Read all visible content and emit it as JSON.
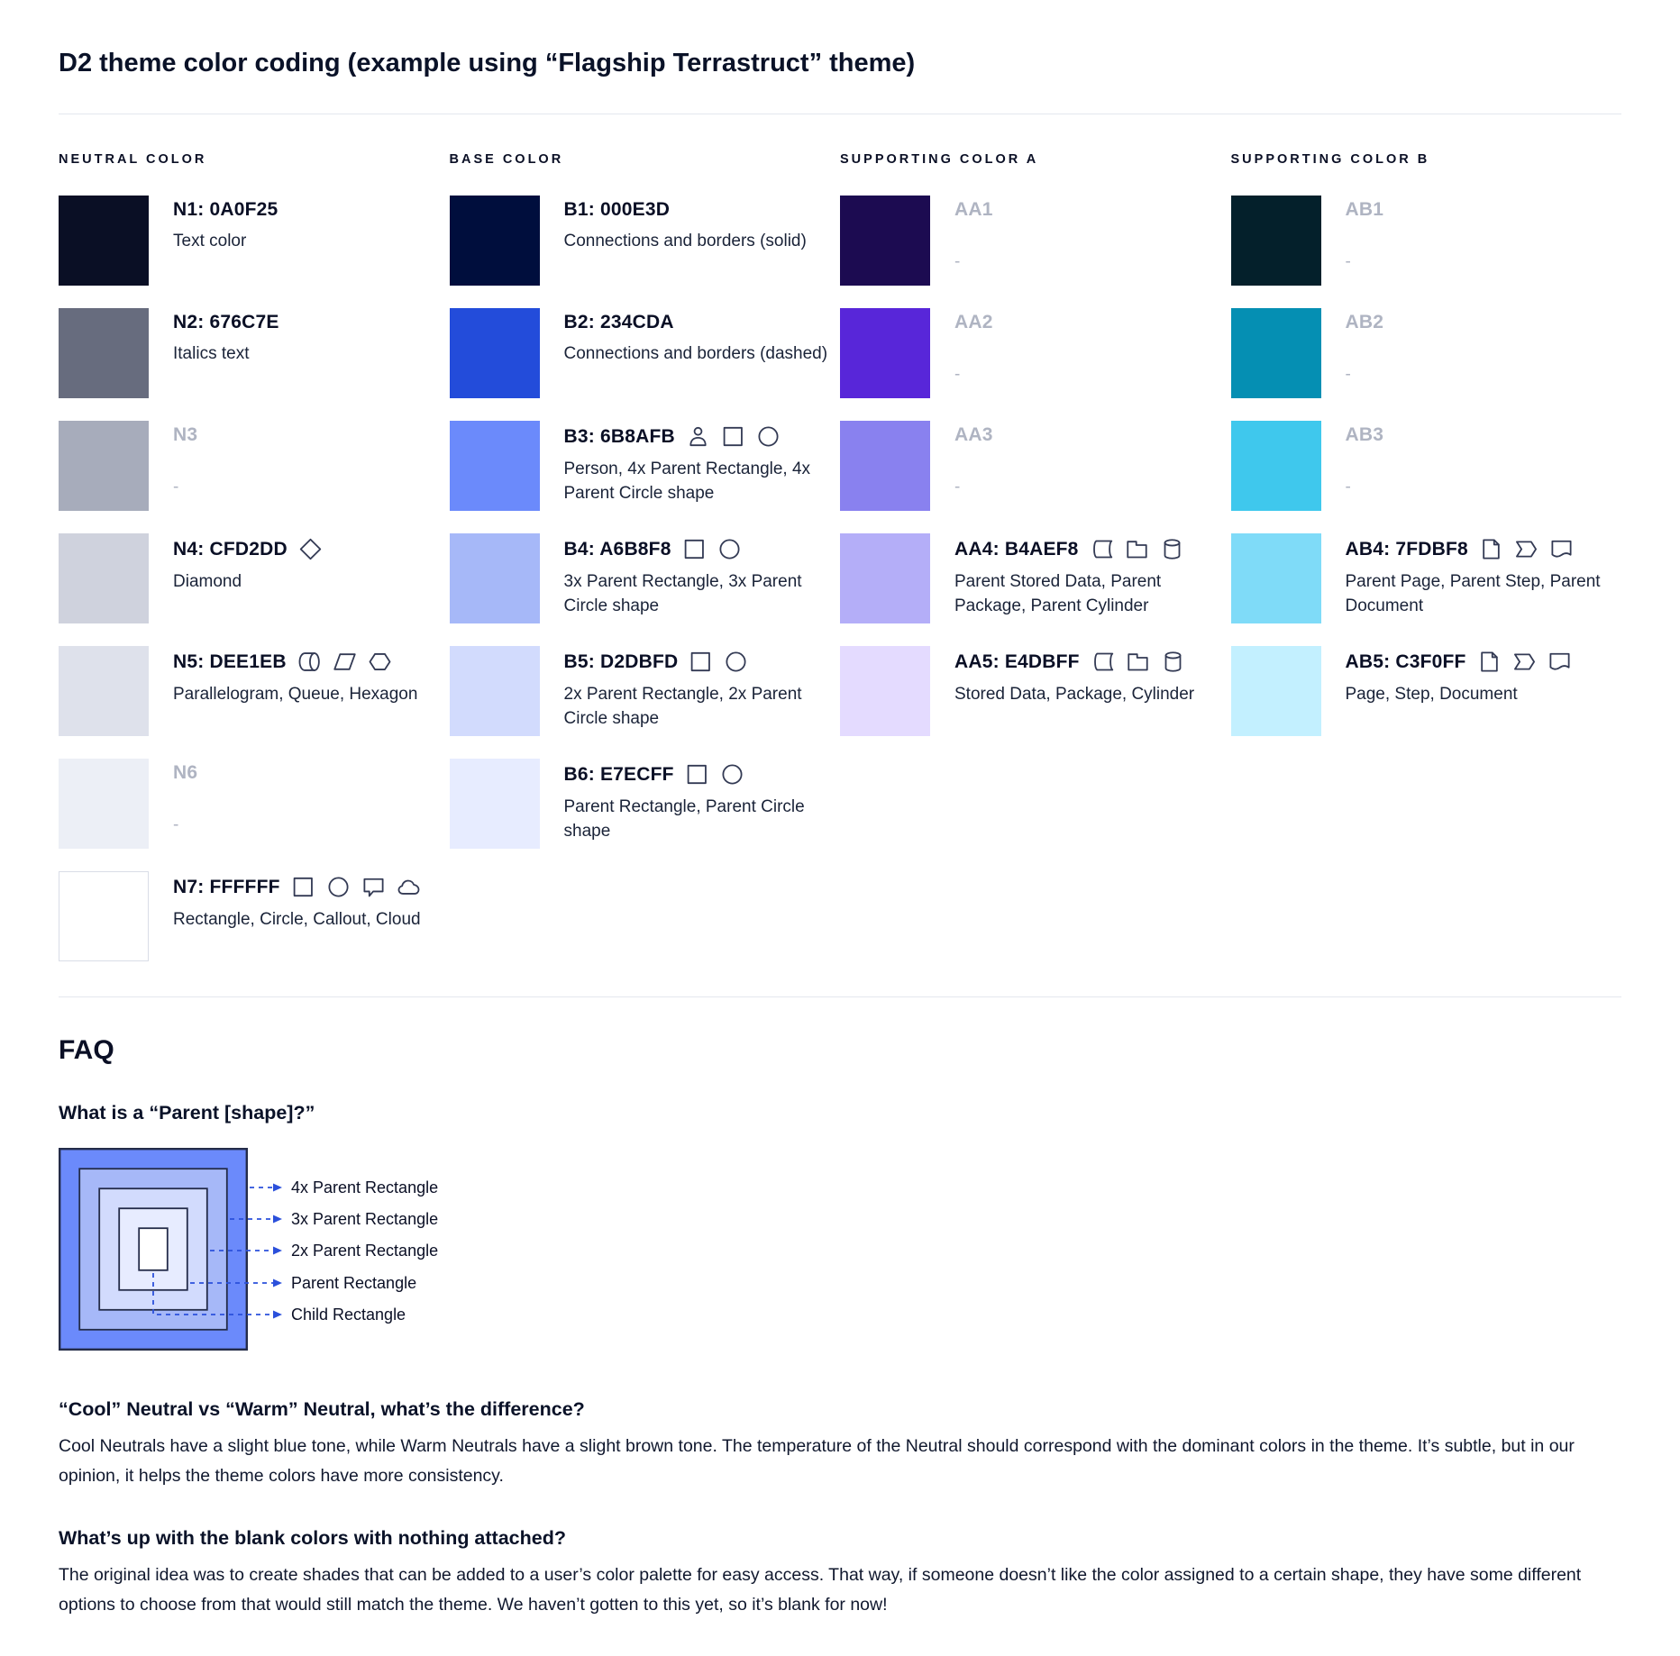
{
  "title": "D2 theme color coding (example using “Flagship Terrastruct” theme)",
  "colors": {
    "text": "#0A0F25",
    "muted": "#AFB4C2",
    "divider": "#E4E7EE",
    "icon": "#333A54"
  },
  "palette": {
    "columns": [
      {
        "header": "NEUTRAL COLOR",
        "rows": [
          {
            "label": "N1: 0A0F25",
            "swatch": "#0A0F25",
            "desc": "Text color"
          },
          {
            "label": "N2: 676C7E",
            "swatch": "#676C7E",
            "desc": "Italics text"
          },
          {
            "label": "N3",
            "swatch": "#A7ACBB",
            "desc": "-",
            "blank": true
          },
          {
            "label": "N4: CFD2DD",
            "swatch": "#CFD2DD",
            "desc": "Diamond",
            "icons": [
              "diamond-icon"
            ]
          },
          {
            "label": "N5: DEE1EB",
            "swatch": "#DEE1EB",
            "desc": "Parallelogram, Queue, Hexagon",
            "icons": [
              "queue-icon",
              "parallelogram-icon",
              "hexagon-icon"
            ]
          },
          {
            "label": "N6",
            "swatch": "#ECEFF6",
            "desc": "-",
            "blank": true
          },
          {
            "label": "N7: FFFFFF",
            "swatch": "#FFFFFF",
            "swatch_border": "#D9DDE7",
            "desc": "Rectangle, Circle, Callout, Cloud",
            "icons": [
              "rectangle-icon",
              "circle-icon",
              "callout-icon",
              "cloud-icon"
            ]
          }
        ]
      },
      {
        "header": "BASE COLOR",
        "rows": [
          {
            "label": "B1: 000E3D",
            "swatch": "#000E3D",
            "desc": "Connections and borders (solid)"
          },
          {
            "label": "B2: 234CDA",
            "swatch": "#234CDA",
            "desc": "Connections and borders (dashed)"
          },
          {
            "label": "B3: 6B8AFB",
            "swatch": "#6B8AFB",
            "desc": "Person, 4x Parent Rectangle, 4x Parent Circle shape",
            "icons": [
              "person-icon",
              "rectangle-icon",
              "circle-icon"
            ]
          },
          {
            "label": "B4: A6B8F8",
            "swatch": "#A6B8F8",
            "desc": "3x Parent Rectangle, 3x Parent Circle shape",
            "icons": [
              "rectangle-icon",
              "circle-icon"
            ]
          },
          {
            "label": "B5: D2DBFD",
            "swatch": "#D2DBFD",
            "desc": "2x Parent Rectangle, 2x Parent Circle shape",
            "icons": [
              "rectangle-icon",
              "circle-icon"
            ]
          },
          {
            "label": "B6: E7ECFF",
            "swatch": "#E7ECFF",
            "desc": "Parent Rectangle, Parent Circle shape",
            "icons": [
              "rectangle-icon",
              "circle-icon"
            ]
          }
        ]
      },
      {
        "header": "SUPPORTING COLOR A",
        "rows": [
          {
            "label": "AA1",
            "swatch": "#1C0B51",
            "desc": "-",
            "blank": true
          },
          {
            "label": "AA2",
            "swatch": "#5826D9",
            "desc": "-",
            "blank": true
          },
          {
            "label": "AA3",
            "swatch": "#8981EF",
            "desc": "-",
            "blank": true
          },
          {
            "label": "AA4: B4AEF8",
            "swatch": "#B4AEF8",
            "desc": "Parent Stored Data, Parent Package,  Parent Cylinder",
            "icons": [
              "stored-data-icon",
              "package-icon",
              "cylinder-icon"
            ]
          },
          {
            "label": "AA5: E4DBFF",
            "swatch": "#E4DBFF",
            "desc": "Stored Data, Package, Cylinder",
            "icons": [
              "stored-data-icon",
              "package-icon",
              "cylinder-icon"
            ]
          }
        ]
      },
      {
        "header": "SUPPORTING COLOR B",
        "rows": [
          {
            "label": "AB1",
            "swatch": "#04202B",
            "desc": "-",
            "blank": true
          },
          {
            "label": "AB2",
            "swatch": "#058FB3",
            "desc": "-",
            "blank": true
          },
          {
            "label": "AB3",
            "swatch": "#3FC8ED",
            "desc": "-",
            "blank": true
          },
          {
            "label": "AB4: 7FDBF8",
            "swatch": "#7FDBF8",
            "desc": "Parent Page, Parent Step, Parent Document",
            "icons": [
              "page-icon",
              "step-icon",
              "document-icon"
            ]
          },
          {
            "label": "AB5: C3F0FF",
            "swatch": "#C3F0FF",
            "desc": "Page, Step, Document",
            "icons": [
              "page-icon",
              "step-icon",
              "document-icon"
            ]
          }
        ]
      }
    ]
  },
  "faq": {
    "heading": "FAQ",
    "q1": {
      "q": "What is a “Parent [shape]?”"
    },
    "q2": {
      "q": "“Cool” Neutral vs “Warm” Neutral, what’s the difference?",
      "a": "Cool Neutrals have a slight blue tone, while Warm Neutrals have a slight brown tone. The temperature of the Neutral should correspond with the dominant colors in the theme. It’s subtle, but in our opinion, it helps the theme colors have more consistency."
    },
    "q3": {
      "q": "What’s up with the blank colors with nothing attached?",
      "a": "The original idea was to create shades that can be added to a user’s color palette for easy access. That way, if someone doesn’t like the color assigned to a certain shape, they have some different options to choose from that would still match the theme. We haven’t gotten to this yet, so it’s blank for now!"
    },
    "diagram": {
      "labels": [
        "4x Parent Rectangle",
        "3x Parent Rectangle",
        "2x Parent Rectangle",
        "Parent Rectangle",
        "Child Rectangle"
      ],
      "layer_colors": [
        "#6B8AFB",
        "#A6B8F8",
        "#D2DBFD",
        "#E7ECFF",
        "#FFFFFF"
      ],
      "arrow_color": "#2B50DB",
      "border_color": "#242C49"
    }
  }
}
